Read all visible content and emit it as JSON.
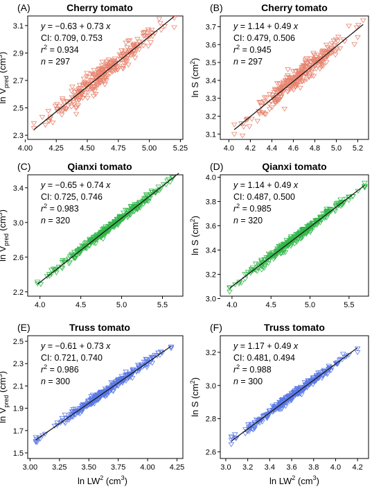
{
  "figure": {
    "shared_xlabel": {
      "base": "ln LW",
      "sup": "2",
      "tail": " (cm",
      "sup2": "3",
      "end": ")"
    }
  },
  "chart_data": [
    {
      "type": "scatter",
      "panel": "(A)",
      "title": "Cherry tomato",
      "ylabel": {
        "base": "ln V",
        "sub": "pred",
        "tail": " (cm",
        "sup": "3",
        "end": ")"
      },
      "xlim": [
        4.02,
        5.27
      ],
      "ylim": [
        2.27,
        3.17
      ],
      "xticks": [
        "4.00",
        "4.25",
        "4.50",
        "4.75",
        "5.00",
        "5.25"
      ],
      "yticks": [
        "2.3",
        "2.5",
        "2.7",
        "2.9",
        "3.1"
      ],
      "fit": {
        "intercept": -0.63,
        "slope": 0.73,
        "xrange": [
          4.07,
          5.2
        ]
      },
      "stats": {
        "eq_a": "y",
        "eq_b": " = −0.63 + 0.73 ",
        "eq_c": "x",
        "ci": "CI: 0.709, 0.753",
        "r2_val": " = 0.934",
        "n_val": " = 297"
      },
      "n": 297,
      "spread": 0.04,
      "color": "#e8836e"
    },
    {
      "type": "scatter",
      "panel": "(B)",
      "title": "Cherry tomato",
      "ylabel": {
        "base": "ln S (cm",
        "sup": "2",
        "end": ")"
      },
      "xlim": [
        3.92,
        5.3
      ],
      "ylim": [
        3.07,
        3.76
      ],
      "xticks": [
        "4.0",
        "4.2",
        "4.4",
        "4.6",
        "4.8",
        "5.0",
        "5.2"
      ],
      "yticks": [
        "3.1",
        "3.2",
        "3.3",
        "3.4",
        "3.5",
        "3.6",
        "3.7"
      ],
      "fit": {
        "intercept": 1.14,
        "slope": 0.49,
        "xrange": [
          4.05,
          5.25
        ]
      },
      "stats": {
        "eq_a": "y",
        "eq_b": " = 1.14 + 0.49 ",
        "eq_c": "x",
        "ci": "CI: 0.479, 0.506",
        "r2_val": " = 0.945",
        "n_val": " = 297"
      },
      "n": 297,
      "spread": 0.028,
      "color": "#e8836e"
    },
    {
      "type": "scatter",
      "panel": "(C)",
      "title": "Qianxi tomato",
      "ylabel": {
        "base": "ln V",
        "sub": "pred",
        "tail": " (cm",
        "sup": "3",
        "end": ")"
      },
      "xlim": [
        3.85,
        5.75
      ],
      "ylim": [
        2.15,
        3.55
      ],
      "xticks": [
        "4.0",
        "4.5",
        "5.0",
        "5.5"
      ],
      "yticks": [
        "2.2",
        "2.6",
        "3.0",
        "3.4"
      ],
      "fit": {
        "intercept": -0.65,
        "slope": 0.74,
        "xrange": [
          3.97,
          5.7
        ]
      },
      "stats": {
        "eq_a": "y",
        "eq_b": " = −0.65 + 0.74 ",
        "eq_c": "x",
        "ci": "CI: 0.725, 0.746",
        "r2_val": " = 0.983",
        "n_val": " = 320"
      },
      "n": 320,
      "spread": 0.025,
      "color": "#33b84a"
    },
    {
      "type": "scatter",
      "panel": "(D)",
      "title": "Qianxi tomato",
      "ylabel": {
        "base": "ln S (cm",
        "sup": "2",
        "end": ")"
      },
      "xlim": [
        3.85,
        5.75
      ],
      "ylim": [
        3.02,
        4.02
      ],
      "xticks": [
        "4.0",
        "4.5",
        "5.0",
        "5.5"
      ],
      "yticks": [
        "3.0",
        "3.2",
        "3.4",
        "3.6",
        "3.8",
        "4.0"
      ],
      "fit": {
        "intercept": 1.14,
        "slope": 0.49,
        "xrange": [
          3.97,
          5.7
        ]
      },
      "stats": {
        "eq_a": "y",
        "eq_b": " = 1.14 + 0.49 ",
        "eq_c": "x",
        "ci": "CI: 0.487, 0.500",
        "r2_val": " = 0.985",
        "n_val": " = 320"
      },
      "n": 320,
      "spread": 0.017,
      "color": "#33b84a"
    },
    {
      "type": "scatter",
      "panel": "(E)",
      "title": "Truss tomato",
      "ylabel": {
        "base": "ln V",
        "sub": "pred",
        "tail": " (cm",
        "sup": "3",
        "end": ")"
      },
      "xlim": [
        2.98,
        4.3
      ],
      "ylim": [
        1.45,
        2.55
      ],
      "xticks": [
        "3.00",
        "3.25",
        "3.50",
        "3.75",
        "4.00",
        "4.25"
      ],
      "yticks": [
        "1.5",
        "1.7",
        "1.9",
        "2.1",
        "2.3",
        "2.5"
      ],
      "fit": {
        "intercept": -0.61,
        "slope": 0.73,
        "xrange": [
          3.05,
          4.2
        ]
      },
      "stats": {
        "eq_a": "y",
        "eq_b": " = −0.61 + 0.73 ",
        "eq_c": "x",
        "ci": "CI: 0.721, 0.740",
        "r2_val": " = 0.986",
        "n_val": " = 300"
      },
      "n": 300,
      "spread": 0.018,
      "color": "#5a78e6"
    },
    {
      "type": "scatter",
      "panel": "(F)",
      "title": "Truss tomato",
      "ylabel": {
        "base": "ln S (cm",
        "sup": "2",
        "end": ")"
      },
      "xlim": [
        2.95,
        4.3
      ],
      "ylim": [
        2.56,
        3.3
      ],
      "xticks": [
        "3.0",
        "3.2",
        "3.4",
        "3.6",
        "3.8",
        "4.0",
        "4.2"
      ],
      "yticks": [
        "2.6",
        "2.8",
        "3.0",
        "3.2"
      ],
      "fit": {
        "intercept": 1.17,
        "slope": 0.49,
        "xrange": [
          3.05,
          4.2
        ]
      },
      "stats": {
        "eq_a": "y",
        "eq_b": " = 1.17 + 0.49 ",
        "eq_c": "x",
        "ci": "CI: 0.481, 0.494",
        "r2_val": " = 0.988",
        "n_val": " = 300"
      },
      "n": 300,
      "spread": 0.013,
      "color": "#5a78e6"
    }
  ]
}
